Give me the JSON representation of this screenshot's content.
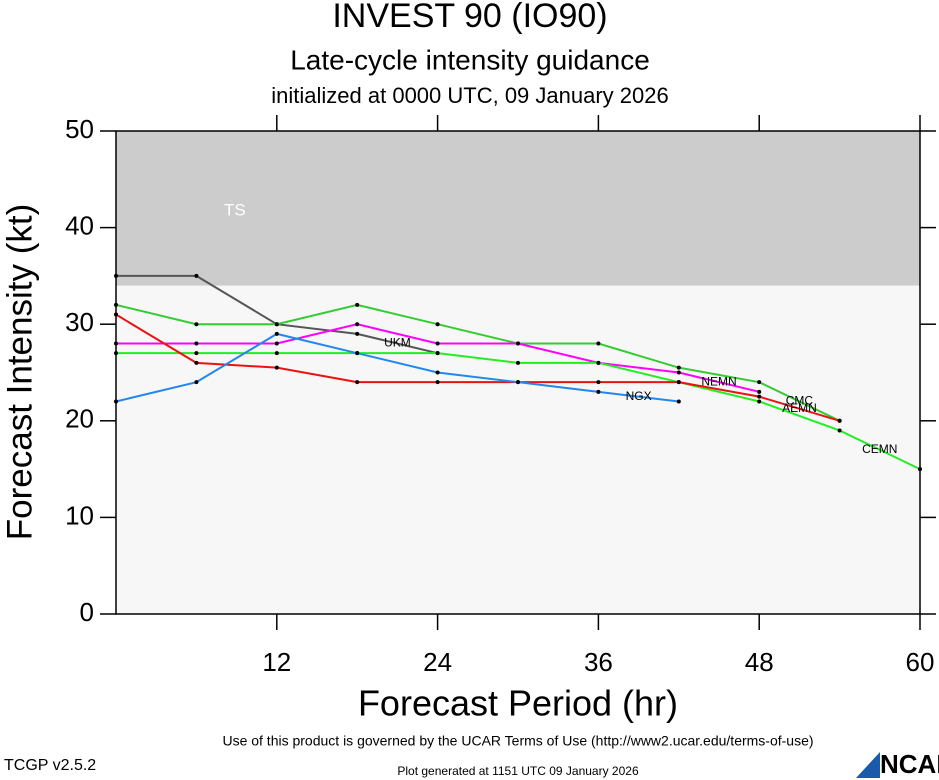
{
  "chart_data": {
    "type": "line",
    "title": "INVEST 90 (IO90)",
    "subtitle": "Late-cycle intensity guidance",
    "init_text": "initialized at 0000 UTC, 09 January 2026",
    "x_label": "Forecast Period (hr)",
    "y_label": "Forecast Intensity (kt)",
    "x": [
      0,
      6,
      12,
      18,
      24,
      30,
      36,
      42,
      48,
      54,
      60
    ],
    "xlim": [
      0,
      60
    ],
    "xticks": [
      12,
      24,
      36,
      48,
      60
    ],
    "ylim": [
      0,
      50
    ],
    "yticks": [
      0,
      10,
      20,
      30,
      40,
      50
    ],
    "bands": [
      {
        "label": "TS",
        "from": 34,
        "to": 50,
        "color": "#cccccc"
      }
    ],
    "series": [
      {
        "name": "UKM",
        "color": "#555555",
        "values": [
          35,
          35,
          30,
          29,
          27,
          null,
          null,
          null,
          null,
          null,
          null
        ]
      },
      {
        "name": "CMC",
        "color": "#33cc33",
        "values": [
          32,
          30,
          30,
          32,
          30,
          28,
          28,
          25.5,
          24,
          20,
          null
        ]
      },
      {
        "name": "NEMN",
        "color": "#ff00ff",
        "values": [
          28,
          28,
          28,
          30,
          28,
          28,
          26,
          25,
          23,
          null,
          null
        ]
      },
      {
        "name": "CEMN",
        "color": "#22ee22",
        "values": [
          27,
          27,
          27,
          27,
          27,
          26,
          26,
          24,
          22,
          19,
          15
        ]
      },
      {
        "name": "AEMN",
        "color": "#ee1111",
        "values": [
          31,
          26,
          25.5,
          24,
          24,
          24,
          24,
          24,
          22.5,
          20,
          null
        ]
      },
      {
        "name": "NGX",
        "color": "#2288ee",
        "values": [
          22,
          24,
          29,
          27,
          25,
          24,
          23,
          22,
          null,
          null,
          null
        ]
      }
    ]
  },
  "footer": {
    "terms": "Use of this product is governed by the UCAR Terms of Use (http://www2.ucar.edu/terms-of-use)",
    "version": "TCGP v2.5.2",
    "generated": "Plot generated at 1151 UTC   09 January 2026",
    "logo": "NCAR"
  }
}
